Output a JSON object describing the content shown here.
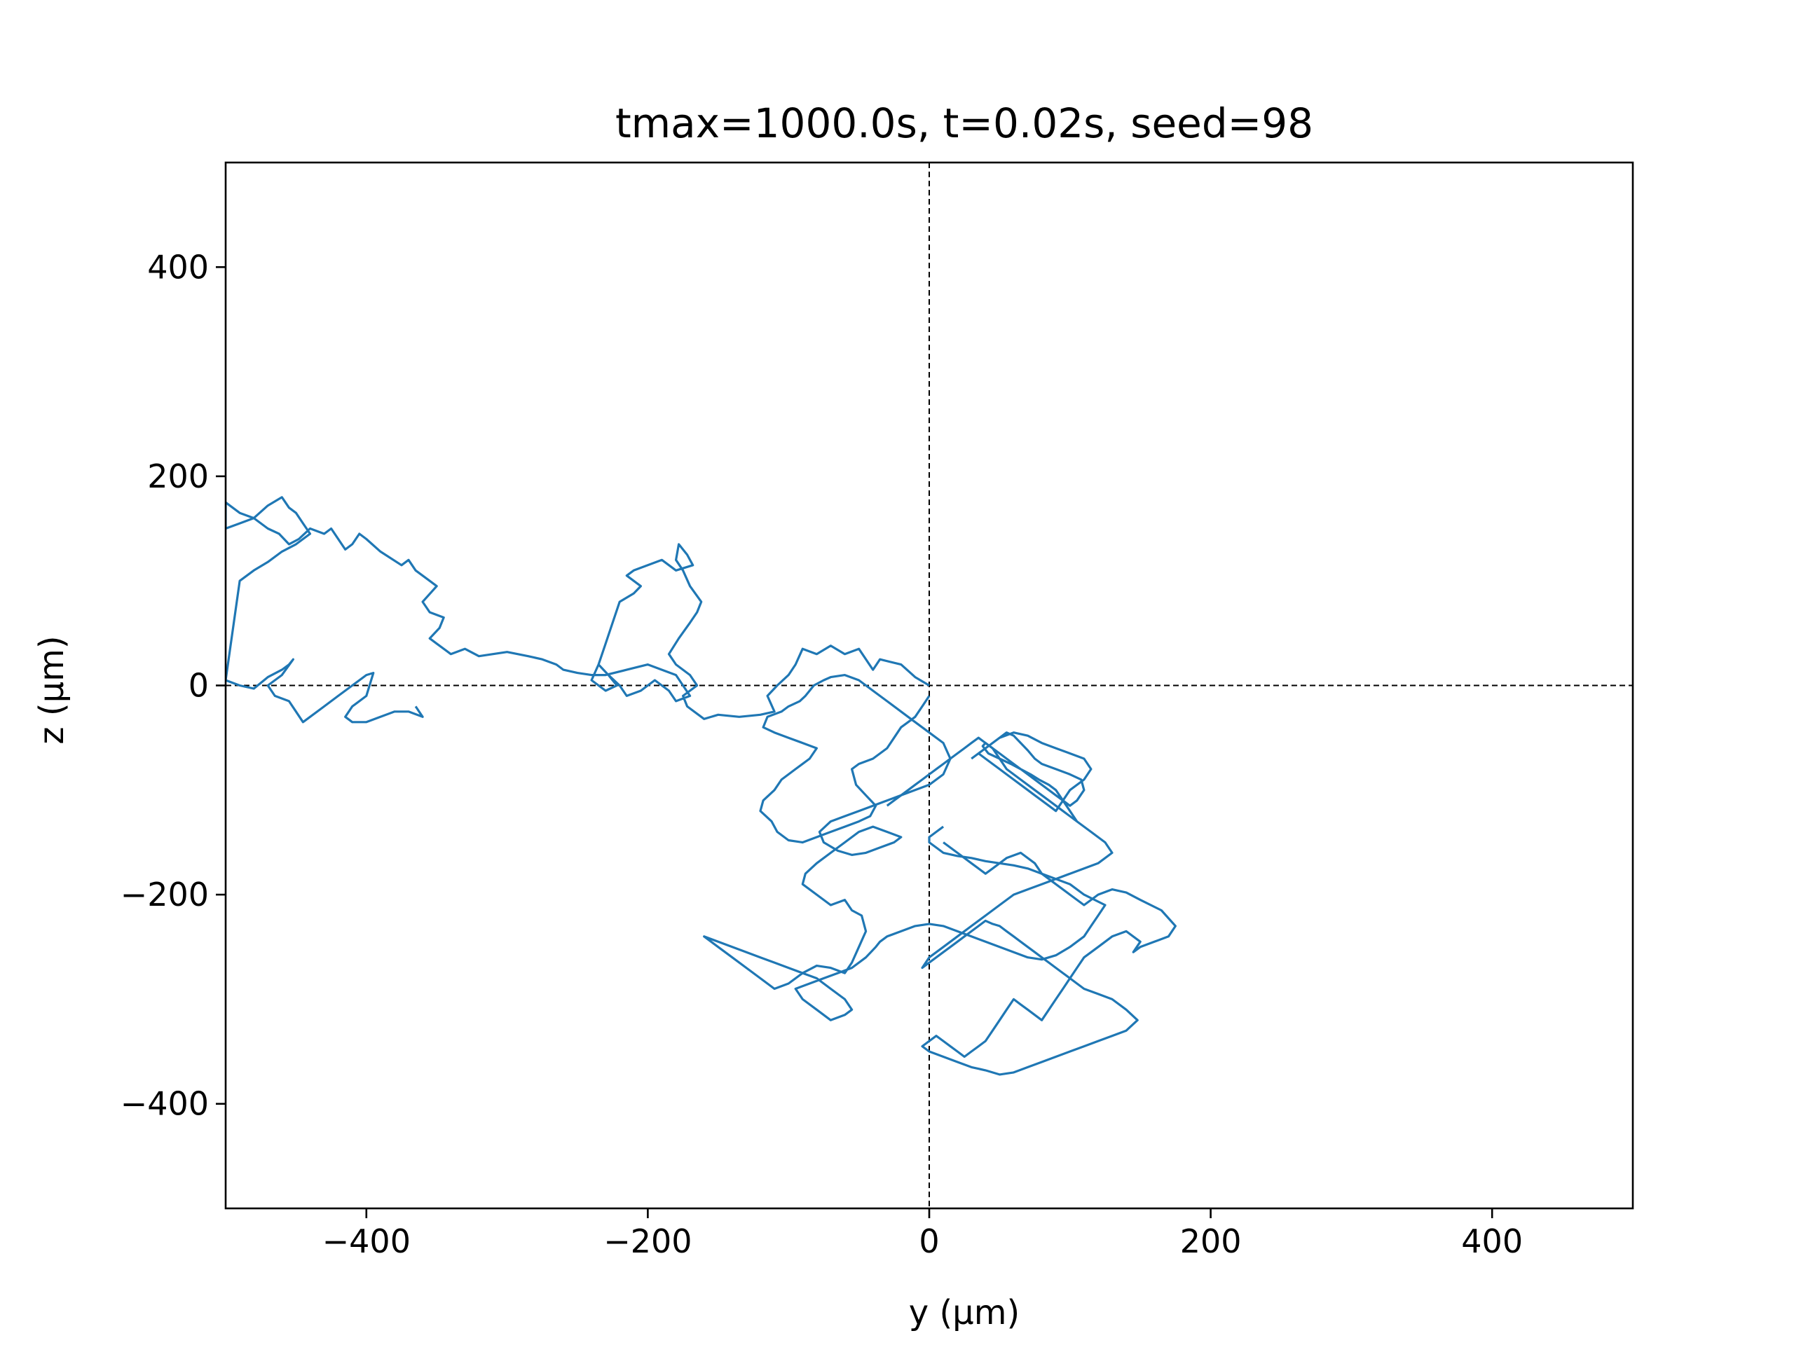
{
  "chart_data": {
    "type": "line",
    "title": "tmax=1000.0s, t=0.02s, seed=98",
    "xlabel": "y (μm)",
    "ylabel": "z (μm)",
    "xlim": [
      -500,
      500
    ],
    "ylim": [
      -500,
      500
    ],
    "xticks": [
      -400,
      -200,
      0,
      200,
      400
    ],
    "yticks": [
      -400,
      -200,
      0,
      200,
      400
    ],
    "xtick_labels": [
      "−400",
      "−200",
      "0",
      "200",
      "400"
    ],
    "ytick_labels": [
      "−400",
      "−200",
      "0",
      "200",
      "400"
    ],
    "grid": false,
    "reference_lines": {
      "x": 0,
      "y": 0,
      "style": "dashed",
      "color": "#000000"
    },
    "series": [
      {
        "color": "#1f77b4",
        "x": [
          0,
          -10,
          -20,
          -35,
          -40,
          -50,
          -60,
          -70,
          -80,
          -90,
          -95,
          -100,
          -108,
          -115,
          -110,
          -120,
          -135,
          -150,
          -160,
          -172,
          -175,
          -165,
          -170,
          -180,
          -185,
          -178,
          -170,
          -165,
          -162,
          -170,
          -175,
          -180,
          -178,
          -175,
          -172,
          -168,
          -180,
          -190,
          -200,
          -210,
          -215,
          -205,
          -210,
          -220,
          -225,
          -230,
          -235,
          -228,
          -222,
          -230,
          -240,
          -235,
          -228,
          -220,
          -215,
          -205,
          -195,
          -185,
          -180,
          -170,
          -175,
          -180,
          -190,
          -200,
          -215,
          -230,
          -240,
          -250,
          -260,
          -265,
          -275,
          -285,
          -300,
          -310,
          -320,
          -330,
          -340,
          -350,
          -355,
          -348,
          -345,
          -355,
          -360,
          -350,
          -355,
          -365,
          -370,
          -375,
          -390,
          -400,
          -405,
          -410,
          -415,
          -425,
          -430,
          -440,
          -448,
          -455,
          -462,
          -470,
          -480,
          -490,
          -500,
          -500,
          -490,
          -480,
          -470,
          -460,
          -455,
          -450,
          -445,
          -440,
          -450,
          -460,
          -470,
          -480,
          -490,
          -500,
          -490,
          -480,
          -470,
          -460,
          -455,
          -452,
          -460,
          -470,
          -465,
          -455,
          -450,
          -445,
          -440,
          -430,
          -420,
          -410,
          -400,
          -395,
          -400,
          -410,
          -415,
          -410,
          -400,
          -390,
          -380,
          -370,
          -360,
          -365
        ],
        "y": [
          0,
          8,
          20,
          25,
          15,
          35,
          30,
          38,
          30,
          35,
          20,
          10,
          0,
          -10,
          -25,
          -28,
          -30,
          -28,
          -32,
          -20,
          -10,
          0,
          10,
          20,
          30,
          45,
          60,
          70,
          80,
          95,
          110,
          120,
          135,
          130,
          125,
          115,
          110,
          120,
          115,
          110,
          105,
          95,
          88,
          80,
          60,
          40,
          20,
          10,
          0,
          -5,
          5,
          20,
          10,
          0,
          -10,
          -5,
          5,
          -5,
          -15,
          -10,
          0,
          10,
          15,
          20,
          15,
          10,
          10,
          12,
          15,
          20,
          25,
          28,
          32,
          30,
          28,
          35,
          30,
          40,
          45,
          55,
          65,
          70,
          80,
          95,
          100,
          110,
          120,
          115,
          128,
          140,
          145,
          135,
          130,
          150,
          145,
          150,
          140,
          135,
          145,
          150,
          160,
          165,
          175,
          150,
          155,
          160,
          172,
          180,
          170,
          165,
          155,
          145,
          135,
          128,
          118,
          110,
          100,
          5,
          0,
          -3,
          8,
          15,
          20,
          25,
          10,
          0,
          -10,
          -15,
          -25,
          -35,
          -30,
          -20,
          -10,
          0,
          10,
          12,
          -10,
          -20,
          -30,
          -35,
          -35,
          -30,
          -25,
          -25,
          -30,
          -20
        ]
      },
      {
        "color": "#1f77b4",
        "x": [
          0,
          -5,
          -10,
          -15,
          -20,
          -25,
          -30,
          -40,
          -50,
          -55,
          -52,
          -45,
          -38,
          -42,
          -50,
          -60,
          -70,
          -80,
          -90,
          -100,
          -108,
          -112,
          -120,
          -118,
          -110,
          -105,
          -100,
          -95,
          -85,
          -80,
          -90,
          -100,
          -110,
          -118,
          -115,
          -105,
          -100,
          -92,
          -88,
          -85,
          -82,
          -75,
          -70,
          -60,
          -50,
          -40,
          -30,
          -20,
          -10,
          0,
          10,
          15,
          10,
          0,
          -10,
          -20,
          -30,
          -40,
          -50,
          -60,
          -70,
          -78,
          -75,
          -65,
          -55,
          -45,
          -35,
          -25,
          -20,
          -30,
          -40,
          -50,
          -60,
          -70,
          -80,
          -88,
          -90,
          -80,
          -70,
          -60,
          -55,
          -48,
          -45,
          -50,
          -55,
          -60,
          -70,
          -80,
          -90,
          -100,
          -110,
          -120,
          -130,
          -140,
          -150,
          -155,
          -160,
          -150,
          -140,
          -130,
          -120,
          -110,
          -100,
          -90,
          -80,
          -75,
          -70,
          -60,
          -55,
          -60,
          -70,
          -80,
          -90,
          -95,
          -85,
          -75,
          -65,
          -55,
          -45,
          -38,
          -35,
          -30,
          -20,
          -10,
          0,
          10,
          20,
          30,
          40,
          50,
          60,
          70,
          80,
          90,
          100,
          110,
          115,
          120,
          125,
          110,
          100,
          90,
          80,
          70,
          60,
          50,
          40,
          30,
          20,
          10,
          5,
          0,
          0,
          5,
          10
        ],
        "y": [
          -10,
          -20,
          -30,
          -35,
          -40,
          -50,
          -60,
          -70,
          -75,
          -80,
          -95,
          -105,
          -115,
          -125,
          -130,
          -135,
          -140,
          -145,
          -150,
          -148,
          -140,
          -130,
          -120,
          -110,
          -100,
          -90,
          -85,
          -80,
          -70,
          -60,
          -55,
          -50,
          -45,
          -40,
          -30,
          -25,
          -20,
          -15,
          -10,
          -5,
          0,
          5,
          8,
          10,
          5,
          -5,
          -15,
          -25,
          -35,
          -45,
          -55,
          -70,
          -85,
          -95,
          -100,
          -105,
          -110,
          -115,
          -120,
          -125,
          -130,
          -140,
          -150,
          -158,
          -162,
          -160,
          -155,
          -150,
          -145,
          -140,
          -135,
          -140,
          -150,
          -160,
          -170,
          -180,
          -190,
          -200,
          -210,
          -205,
          -215,
          -220,
          -235,
          -250,
          -265,
          -275,
          -270,
          -268,
          -275,
          -285,
          -290,
          -280,
          -270,
          -260,
          -250,
          -245,
          -240,
          -245,
          -250,
          -255,
          -260,
          -265,
          -270,
          -275,
          -280,
          -285,
          -290,
          -300,
          -310,
          -315,
          -320,
          -310,
          -300,
          -290,
          -285,
          -280,
          -275,
          -270,
          -260,
          -250,
          -245,
          -240,
          -235,
          -230,
          -228,
          -230,
          -235,
          -240,
          -245,
          -250,
          -255,
          -260,
          -262,
          -258,
          -250,
          -240,
          -230,
          -220,
          -210,
          -200,
          -190,
          -185,
          -180,
          -175,
          -172,
          -170,
          -168,
          -165,
          -163,
          -160,
          -155,
          -150,
          -145,
          -140,
          -135
        ]
      },
      {
        "color": "#1f77b4",
        "x": [
          10,
          20,
          30,
          40,
          45,
          55,
          65,
          75,
          80,
          90,
          100,
          110,
          115,
          120,
          130,
          140,
          150,
          165,
          175,
          170,
          160,
          150,
          145,
          150,
          140,
          130,
          120,
          110,
          105,
          100,
          95,
          90,
          85,
          80,
          75,
          70,
          65,
          60,
          55,
          50,
          45,
          40,
          35,
          30,
          25,
          20,
          15,
          10,
          5,
          0,
          -5,
          0,
          10,
          20,
          30,
          40,
          50,
          60,
          70,
          80,
          90,
          100,
          110,
          120,
          130,
          140,
          148,
          140,
          130,
          120,
          110,
          105,
          100,
          95,
          90,
          85,
          80,
          75,
          70,
          65,
          60,
          55,
          50,
          45,
          40,
          35,
          30,
          25,
          20,
          15,
          10,
          5,
          0,
          -5,
          0,
          10,
          20,
          30,
          40,
          50,
          60,
          70,
          80,
          90,
          100,
          110,
          120,
          130,
          125,
          115,
          105,
          95,
          85,
          75,
          65,
          55,
          50,
          45,
          40,
          35,
          30,
          25,
          20,
          15,
          10,
          5,
          0,
          -5,
          -10,
          -15,
          -20,
          -25,
          -30
        ],
        "y": [
          -150,
          -160,
          -170,
          -180,
          -175,
          -165,
          -160,
          -170,
          -180,
          -190,
          -200,
          -210,
          -205,
          -200,
          -195,
          -198,
          -205,
          -215,
          -230,
          -240,
          -245,
          -250,
          -255,
          -245,
          -235,
          -240,
          -250,
          -260,
          -270,
          -280,
          -290,
          -300,
          -310,
          -320,
          -315,
          -310,
          -305,
          -300,
          -310,
          -320,
          -330,
          -340,
          -345,
          -350,
          -355,
          -350,
          -345,
          -340,
          -335,
          -340,
          -345,
          -350,
          -355,
          -360,
          -365,
          -368,
          -372,
          -370,
          -365,
          -360,
          -355,
          -350,
          -345,
          -340,
          -335,
          -330,
          -320,
          -310,
          -300,
          -295,
          -290,
          -285,
          -280,
          -275,
          -270,
          -265,
          -260,
          -255,
          -250,
          -245,
          -240,
          -235,
          -230,
          -228,
          -225,
          -230,
          -235,
          -240,
          -245,
          -250,
          -255,
          -260,
          -265,
          -270,
          -260,
          -250,
          -240,
          -230,
          -220,
          -210,
          -200,
          -195,
          -190,
          -185,
          -180,
          -175,
          -170,
          -160,
          -150,
          -140,
          -130,
          -120,
          -110,
          -100,
          -90,
          -80,
          -70,
          -60,
          -55,
          -50,
          -55,
          -60,
          -65,
          -70,
          -75,
          -80,
          -85,
          -90,
          -95,
          -100,
          -105,
          -110,
          -115
        ]
      },
      {
        "color": "#1f77b4",
        "x": [
          30,
          40,
          50,
          60,
          70,
          80,
          90,
          100,
          110,
          115,
          110,
          100,
          95,
          90,
          85,
          80,
          75,
          70,
          65,
          60,
          55,
          50,
          45,
          40,
          35,
          40,
          45,
          50,
          55,
          60,
          65,
          70,
          75,
          80,
          90,
          100,
          108,
          110,
          105,
          100,
          95,
          90,
          85,
          80,
          75,
          70,
          65,
          60,
          55,
          50,
          45,
          40,
          38,
          42,
          50,
          58,
          65,
          72,
          78,
          85,
          90,
          95,
          100,
          105
        ],
        "y": [
          -70,
          -60,
          -50,
          -45,
          -48,
          -55,
          -60,
          -65,
          -70,
          -80,
          -90,
          -100,
          -110,
          -120,
          -115,
          -110,
          -105,
          -100,
          -95,
          -90,
          -85,
          -80,
          -75,
          -70,
          -65,
          -60,
          -55,
          -50,
          -45,
          -48,
          -55,
          -62,
          -70,
          -75,
          -80,
          -85,
          -90,
          -100,
          -110,
          -115,
          -110,
          -105,
          -100,
          -95,
          -90,
          -85,
          -80,
          -75,
          -70,
          -65,
          -60,
          -55,
          -58,
          -65,
          -70,
          -75,
          -80,
          -85,
          -90,
          -95,
          -100,
          -110,
          -120,
          -130
        ]
      }
    ]
  }
}
